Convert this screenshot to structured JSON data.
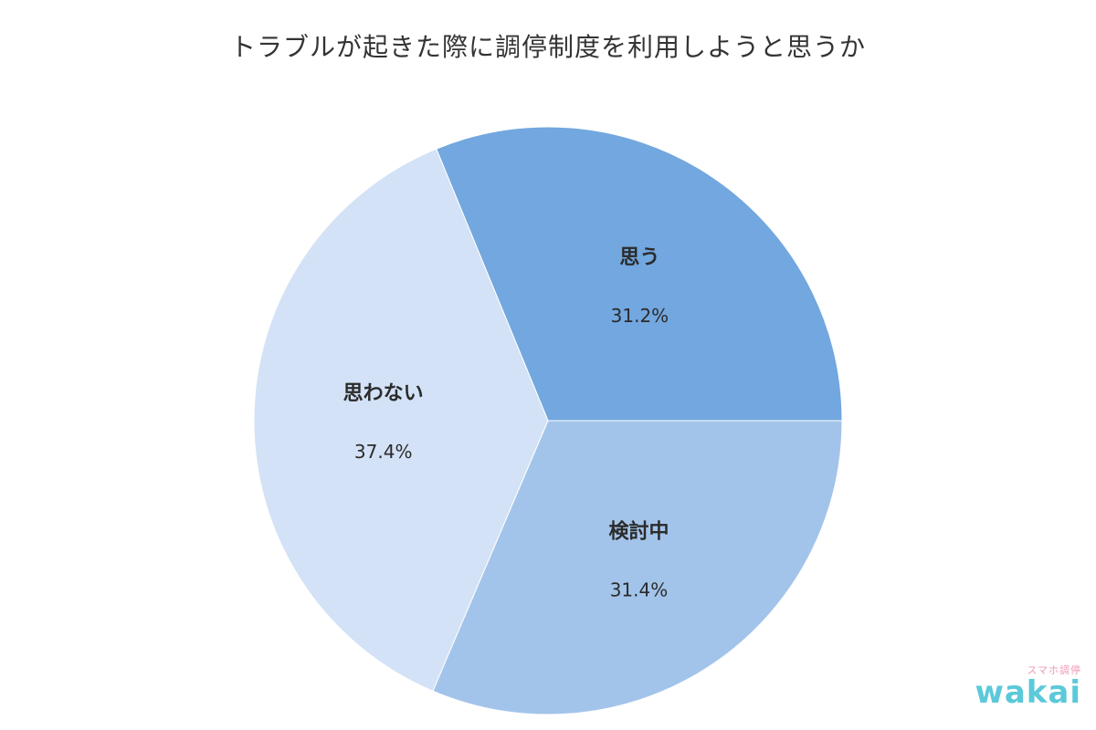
{
  "chart_data": {
    "type": "pie",
    "title": "トラブルが起きた際に調停制度を利用しようと思うか",
    "slices": [
      {
        "label": "思う",
        "value": 31.2,
        "display": "31.2%",
        "color": "#72a7df"
      },
      {
        "label": "思わない",
        "value": 37.4,
        "display": "37.4%",
        "color": "#d3e2f6"
      },
      {
        "label": "検討中",
        "value": 31.4,
        "display": "31.4%",
        "color": "#a3c4ea"
      }
    ],
    "start_angle_deg": 0,
    "direction": "clockwise_from_top_right"
  },
  "watermark": {
    "small_text": "スマホ調停",
    "main_text": "wakai"
  }
}
